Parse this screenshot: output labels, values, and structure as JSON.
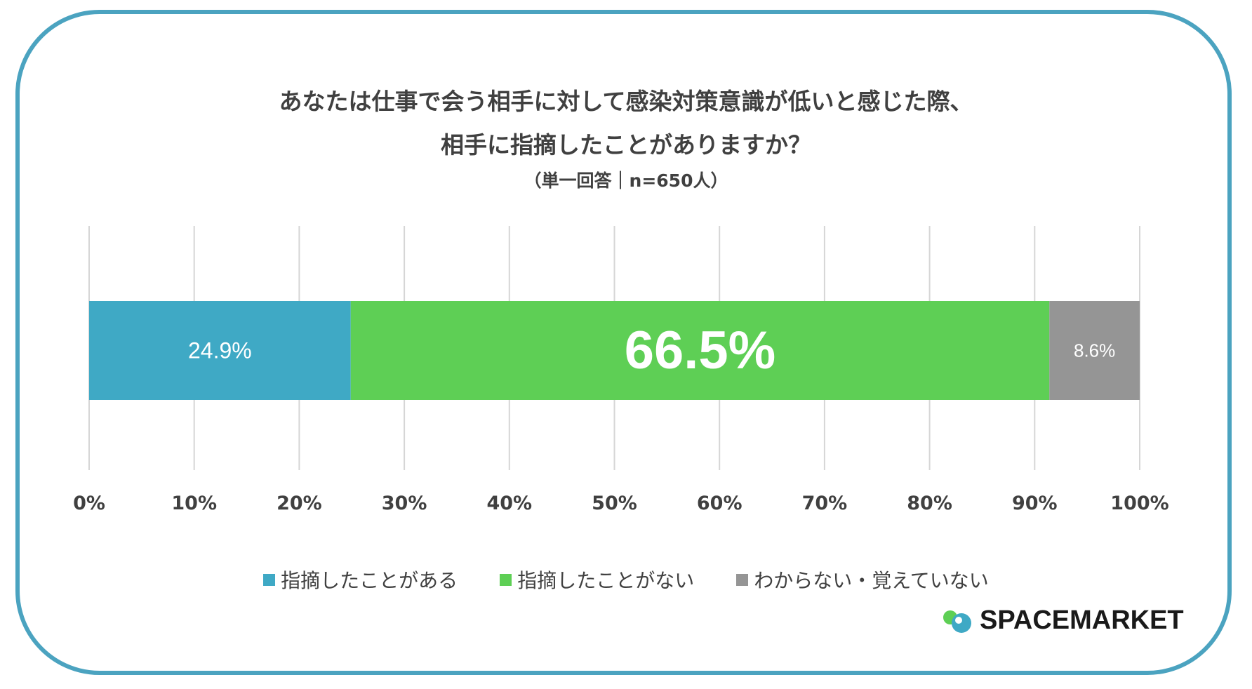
{
  "title_line1": "あなたは仕事で会う相手に対して感染対策意識が低いと感じた際、",
  "title_line2": "相手に指摘したことがありますか？",
  "subtitle": "（単一回答｜n=650人）",
  "brand": "SPACEMARKET",
  "chart_data": {
    "type": "bar",
    "orientation": "horizontal-stacked-100",
    "categories": [
      ""
    ],
    "series": [
      {
        "name": "指摘したことがある",
        "values": [
          24.9
        ],
        "label": "24.9%",
        "color": "#3fa9c5"
      },
      {
        "name": "指摘したことがない",
        "values": [
          66.5
        ],
        "label": "66.5%",
        "color": "#5ecf55"
      },
      {
        "name": "わからない・覚えていない",
        "values": [
          8.6
        ],
        "label": "8.6%",
        "color": "#959595"
      }
    ],
    "xlim": [
      0,
      100
    ],
    "xticks": [
      "0%",
      "10%",
      "20%",
      "30%",
      "40%",
      "50%",
      "60%",
      "70%",
      "80%",
      "90%",
      "100%"
    ],
    "grid": true,
    "legend_position": "bottom"
  }
}
